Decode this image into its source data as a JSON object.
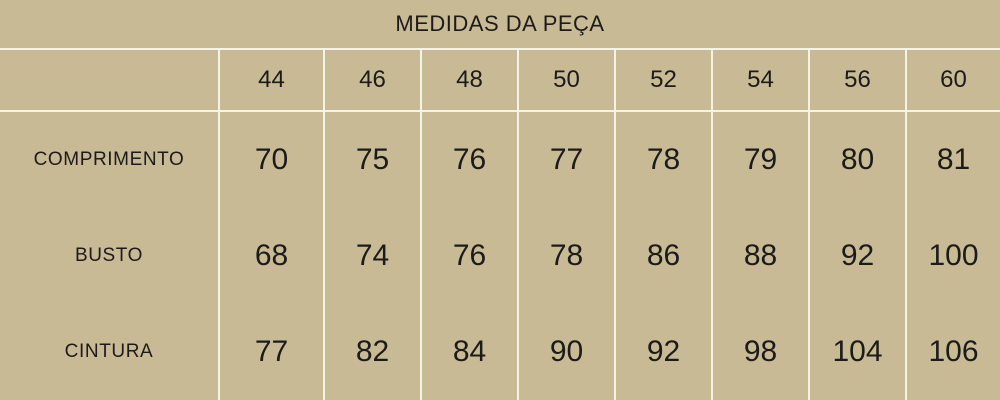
{
  "colors": {
    "background": "#c9ba96",
    "grid_line": "#f5f2e8",
    "text": "#1c1b19"
  },
  "table": {
    "title": "MEDIDAS DA PEÇA",
    "sizes": [
      "44",
      "46",
      "48",
      "50",
      "52",
      "54",
      "56",
      "60"
    ],
    "rows": [
      {
        "label": "COMPRIMENTO",
        "values": [
          "70",
          "75",
          "76",
          "77",
          "78",
          "79",
          "80",
          "81"
        ]
      },
      {
        "label": "BUSTO",
        "values": [
          "68",
          "74",
          "76",
          "78",
          "86",
          "88",
          "92",
          "100"
        ]
      },
      {
        "label": "CINTURA",
        "values": [
          "77",
          "82",
          "84",
          "90",
          "92",
          "98",
          "104",
          "106"
        ]
      }
    ]
  },
  "chart_data": {
    "type": "table",
    "title": "MEDIDAS DA PEÇA",
    "columns": [
      "",
      "44",
      "46",
      "48",
      "50",
      "52",
      "54",
      "56",
      "60"
    ],
    "rows": [
      [
        "COMPRIMENTO",
        70,
        75,
        76,
        77,
        78,
        79,
        80,
        81
      ],
      [
        "BUSTO",
        68,
        74,
        76,
        78,
        86,
        88,
        92,
        100
      ],
      [
        "CINTURA",
        77,
        82,
        84,
        90,
        92,
        98,
        104,
        106
      ]
    ]
  }
}
